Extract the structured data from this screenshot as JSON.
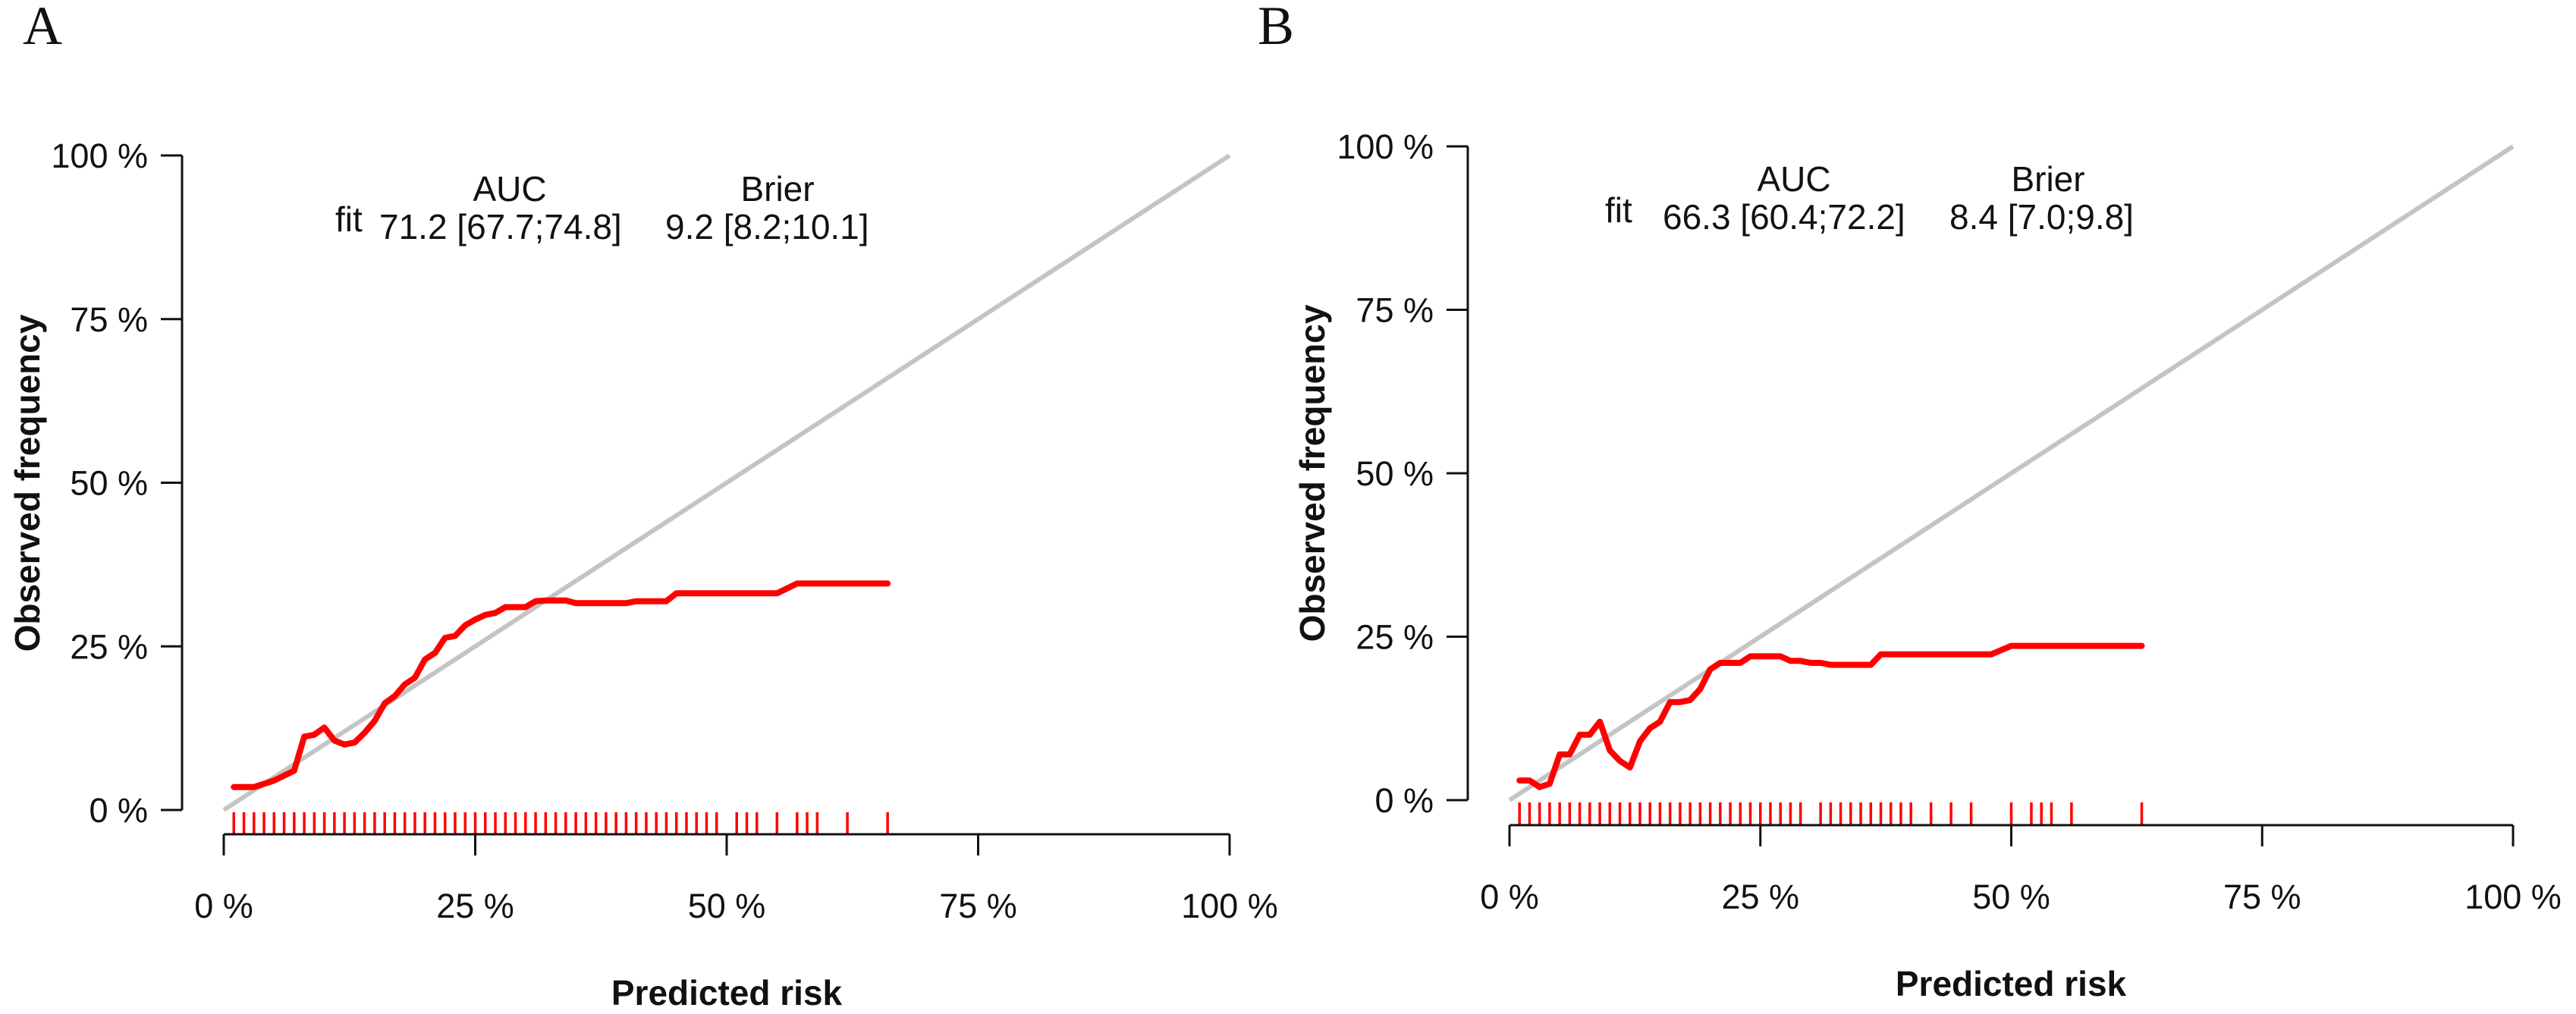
{
  "chart_data": [
    {
      "type": "line",
      "panel": "A",
      "xlabel": "Predicted risk",
      "ylabel": "Observed frequency",
      "xlim": [
        0,
        100
      ],
      "ylim": [
        0,
        100
      ],
      "x_ticks": [
        "0 %",
        "25 %",
        "50 %",
        "75 %",
        "100 %"
      ],
      "y_ticks": [
        "0 %",
        "25 %",
        "50 %",
        "75 %",
        "100 %"
      ],
      "stats": {
        "row_label": "fit",
        "auc_header": "AUC",
        "brier_header": "Brier",
        "auc": "71.2 [67.7;74.8]",
        "brier": "9.2 [8.2;10.1]"
      },
      "reference_line": {
        "x": [
          0,
          100
        ],
        "y": [
          0,
          100
        ],
        "color": "#c4c4c4"
      },
      "series": [
        {
          "color": "#ff0000",
          "x": [
            1,
            3,
            5,
            7,
            8,
            9,
            10,
            11,
            12,
            13,
            14,
            15,
            16,
            17,
            18,
            19,
            20,
            21,
            22,
            23,
            24,
            25,
            26,
            27,
            28,
            29,
            30,
            31,
            32,
            33,
            34,
            35,
            36,
            38,
            40,
            41,
            42,
            43,
            44,
            45,
            50,
            55,
            57,
            60,
            66
          ],
          "y": [
            3.5,
            3.5,
            4.5,
            6.0,
            11.2,
            11.5,
            12.6,
            10.6,
            10.0,
            10.3,
            11.8,
            13.6,
            16.3,
            17.4,
            19.2,
            20.2,
            23.0,
            24.0,
            26.3,
            26.6,
            28.2,
            29.1,
            29.8,
            30.1,
            31.0,
            31.0,
            31.0,
            31.9,
            32.0,
            32.0,
            32.0,
            31.6,
            31.6,
            31.6,
            31.6,
            31.9,
            31.9,
            31.9,
            31.9,
            33.1,
            33.1,
            33.1,
            34.6,
            34.6,
            34.6
          ]
        }
      ],
      "rug": [
        1,
        2,
        3,
        4,
        5,
        6,
        7,
        8,
        9,
        10,
        11,
        12,
        13,
        14,
        15,
        16,
        17,
        18,
        19,
        20,
        21,
        22,
        23,
        24,
        25,
        26,
        27,
        28,
        29,
        30,
        31,
        32,
        33,
        34,
        35,
        36,
        37,
        38,
        39,
        40,
        41,
        42,
        43,
        44,
        45,
        46,
        47,
        48,
        49,
        51,
        52,
        53,
        55,
        57,
        58,
        59,
        62,
        66
      ]
    },
    {
      "type": "line",
      "panel": "B",
      "xlabel": "Predicted risk",
      "ylabel": "Observed frequency",
      "xlim": [
        0,
        100
      ],
      "ylim": [
        0,
        100
      ],
      "x_ticks": [
        "0 %",
        "25 %",
        "50 %",
        "75 %",
        "100 %"
      ],
      "y_ticks": [
        "0 %",
        "25 %",
        "50 %",
        "75 %",
        "100 %"
      ],
      "stats": {
        "row_label": "fit",
        "auc_header": "AUC",
        "brier_header": "Brier",
        "auc": "66.3 [60.4;72.2]",
        "brier": "8.4 [7.0;9.8]"
      },
      "reference_line": {
        "x": [
          0,
          100
        ],
        "y": [
          0,
          100
        ],
        "color": "#c4c4c4"
      },
      "series": [
        {
          "color": "#ff0000",
          "x": [
            1,
            2,
            3,
            4,
            5,
            6,
            7,
            8,
            9,
            10,
            11,
            12,
            13,
            14,
            15,
            16,
            17,
            18,
            19,
            20,
            21,
            22,
            23,
            24,
            25,
            26,
            27,
            28,
            29,
            30,
            31,
            32,
            33,
            34,
            35,
            36,
            37,
            38,
            40,
            42,
            45,
            48,
            50,
            55,
            60,
            63
          ],
          "y": [
            3.0,
            3.0,
            2.0,
            2.5,
            7.0,
            7.0,
            10.0,
            10.0,
            12.0,
            7.6,
            6.0,
            5.0,
            9.0,
            11.0,
            12.0,
            15.0,
            15.0,
            15.3,
            17.0,
            20.0,
            21.0,
            21.0,
            21.0,
            22.0,
            22.0,
            22.0,
            22.0,
            21.3,
            21.3,
            21.0,
            21.0,
            20.7,
            20.7,
            20.7,
            20.7,
            20.7,
            22.3,
            22.3,
            22.3,
            22.3,
            22.3,
            22.3,
            23.6,
            23.6,
            23.6,
            23.6
          ]
        }
      ],
      "rug": [
        1,
        2,
        3,
        4,
        5,
        6,
        7,
        8,
        9,
        10,
        11,
        12,
        13,
        14,
        15,
        16,
        17,
        18,
        19,
        20,
        21,
        22,
        23,
        24,
        25,
        26,
        27,
        28,
        29,
        31,
        32,
        33,
        34,
        35,
        36,
        37,
        38,
        39,
        40,
        42,
        44,
        46,
        50,
        52,
        53,
        54,
        56,
        63
      ]
    }
  ]
}
